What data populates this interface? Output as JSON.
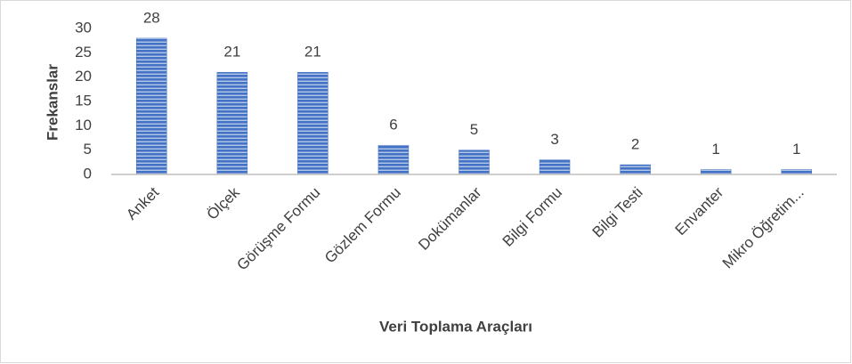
{
  "chart_data": {
    "type": "bar",
    "categories": [
      "Anket",
      "Ölçek",
      "Görüşme Formu",
      "Gözlem Formu",
      "Dokümanlar",
      "Bilgi Formu",
      "Bilgi Testi",
      "Envanter",
      "Mikro Öğretim..."
    ],
    "values": [
      28,
      21,
      21,
      6,
      5,
      3,
      2,
      1,
      1
    ],
    "color": "#4472c4",
    "ylim": [
      0,
      30
    ],
    "yticks": [
      0,
      5,
      10,
      15,
      20,
      25,
      30
    ],
    "y_label": "Frekanslar",
    "x_label": "Veri Toplama Araçları",
    "grid": false
  }
}
